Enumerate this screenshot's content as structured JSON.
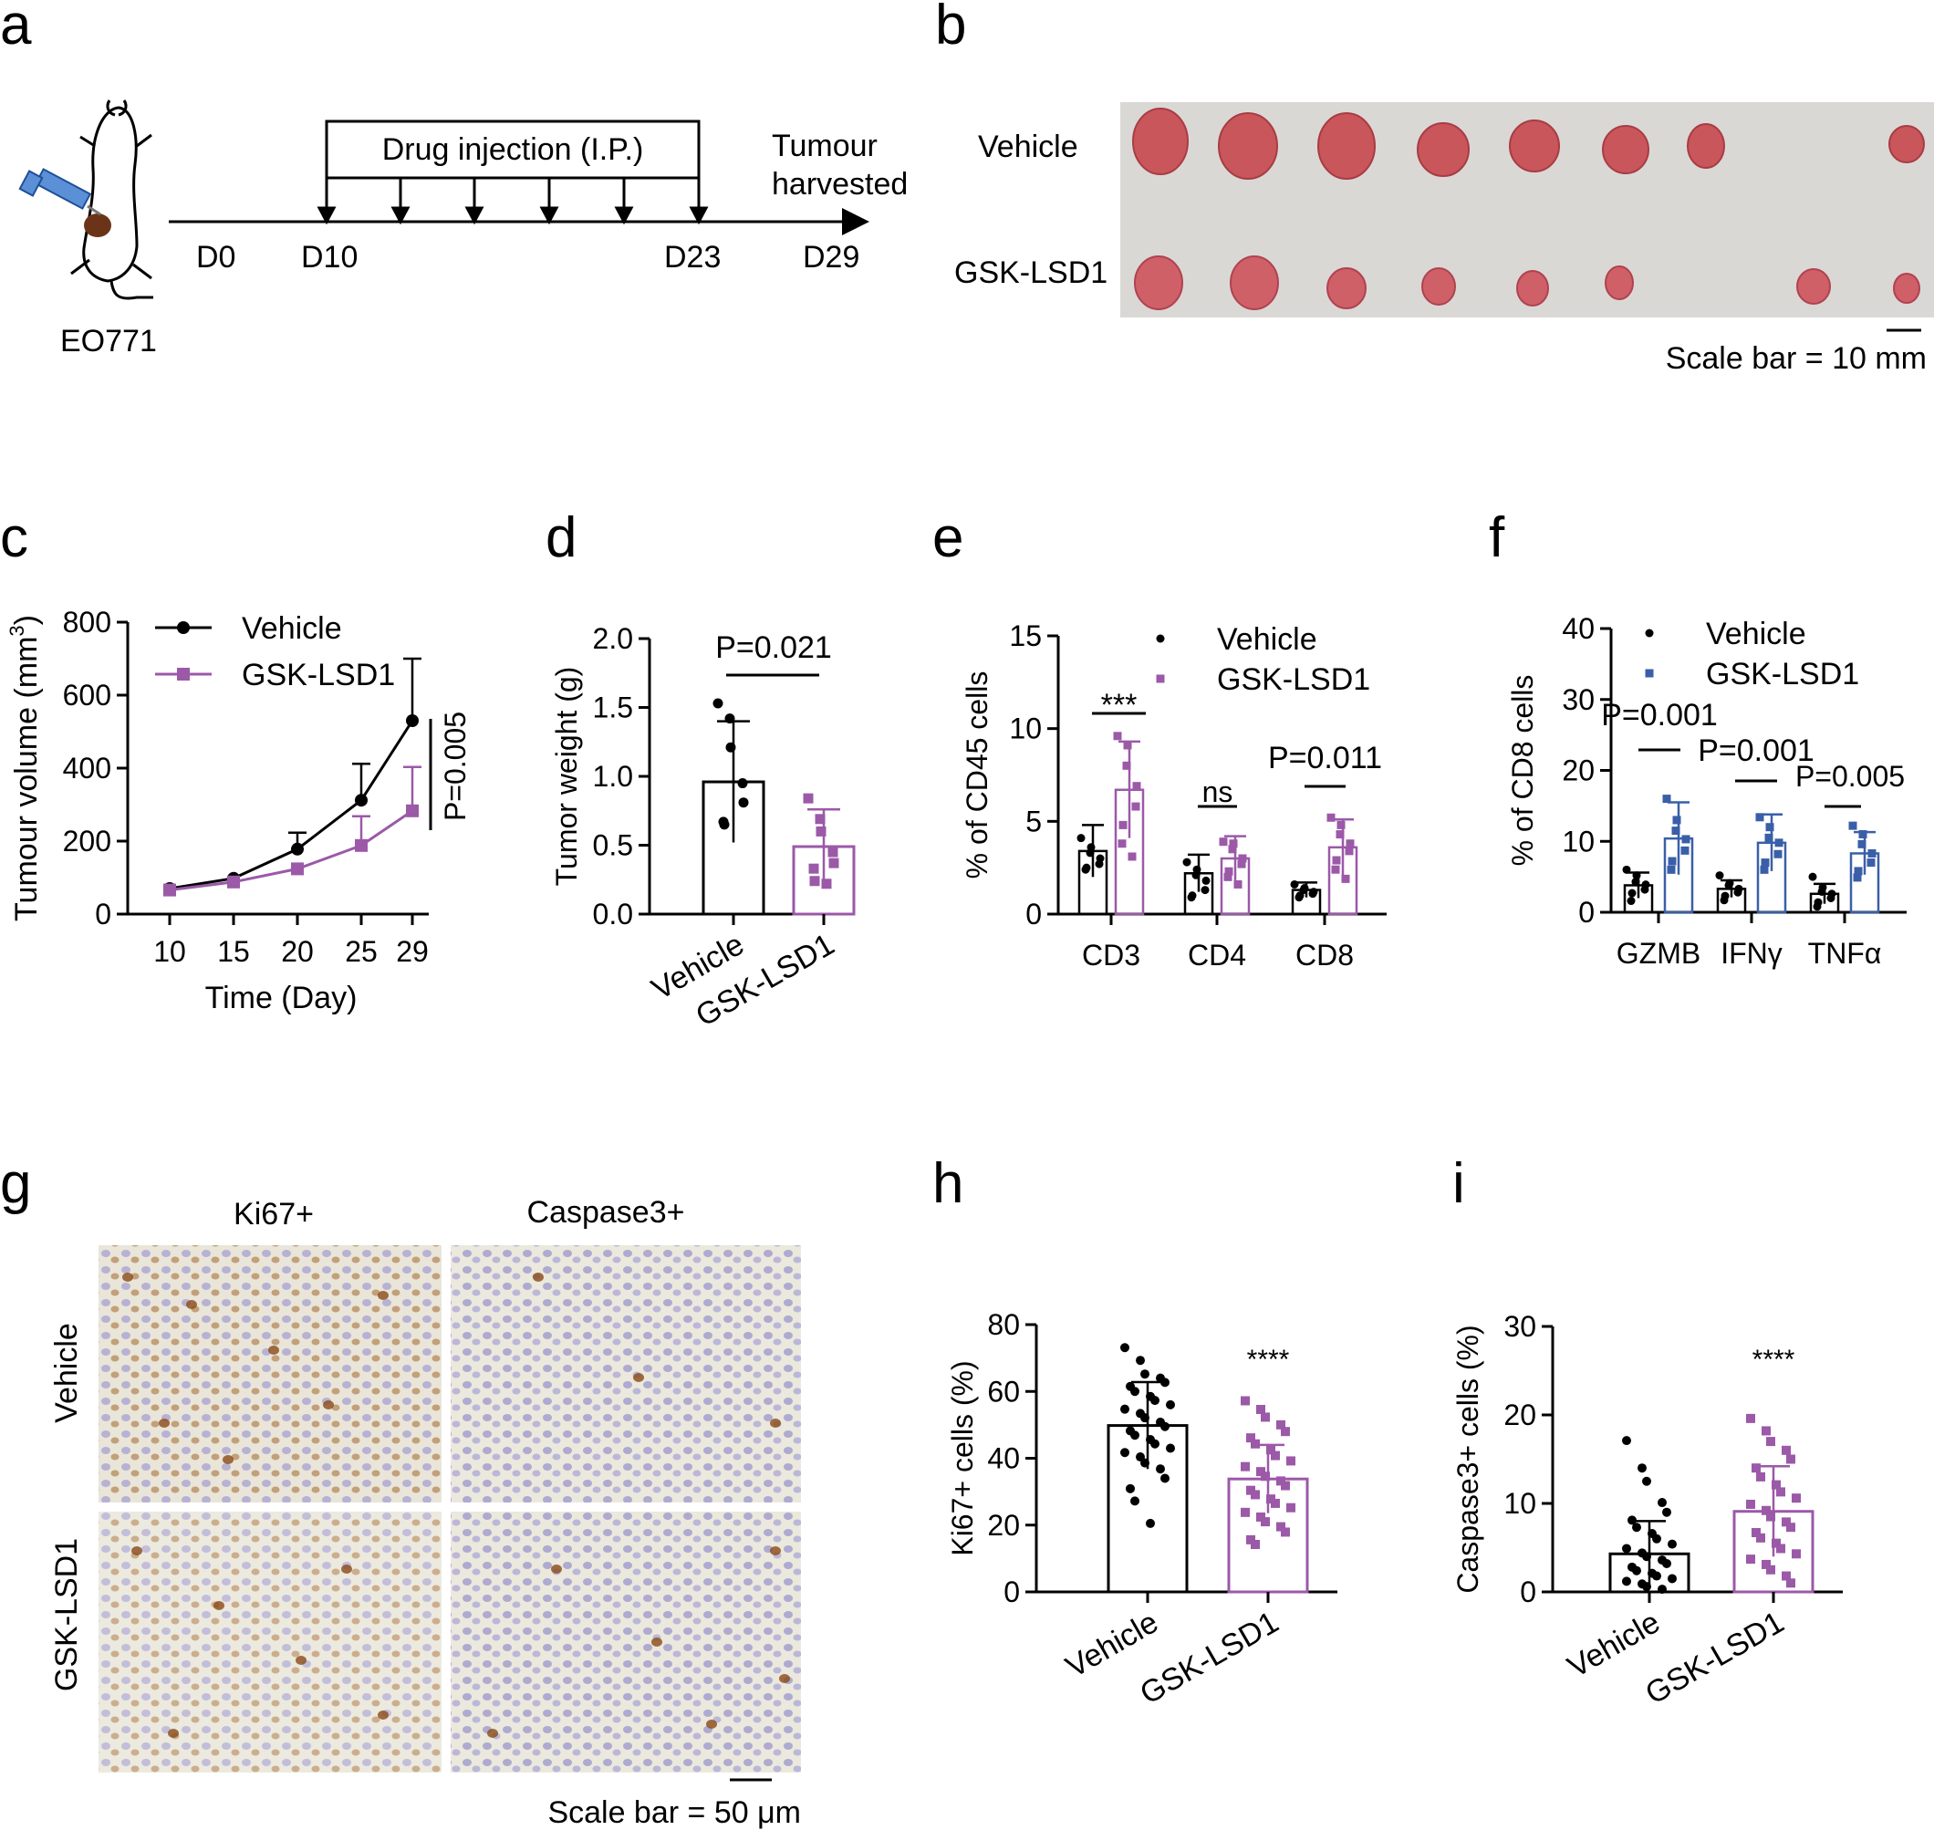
{
  "panel_letters": [
    "a",
    "b",
    "c",
    "d",
    "e",
    "f",
    "g",
    "h",
    "i"
  ],
  "a": {
    "model_label": "EO771",
    "bracket_label": "Drug injection (I.P.)",
    "end_label_1": "Tumour",
    "end_label_2": "harvested",
    "days": [
      "D0",
      "D10",
      "D23",
      "D29"
    ]
  },
  "b": {
    "rows": [
      "Vehicle",
      "GSK-LSD1"
    ],
    "scale_bar": "Scale bar = 10 mm"
  },
  "colors": {
    "vehicle": "#000000",
    "gsk": "#9b59a8",
    "gsk_blue": "#3a5fa8"
  },
  "g": {
    "cols": [
      "Ki67+",
      "Caspase3+"
    ],
    "rows": [
      "Vehicle",
      "GSK-LSD1"
    ],
    "scale_bar": "Scale bar = 50 μm"
  },
  "chart_data": [
    {
      "panel": "c",
      "type": "line",
      "xlabel": "Time  (Day)",
      "ylabel": "Tumour volume (mm",
      "ylabel_sup": "3",
      "ylabel_end": ")",
      "x": [
        10,
        15,
        20,
        25,
        29
      ],
      "ylim": [
        0,
        800
      ],
      "yticks": [
        "0",
        "200",
        "400",
        "600",
        "800"
      ],
      "xticks": [
        "10",
        "15",
        "20",
        "25",
        "29"
      ],
      "series": [
        {
          "name": "Vehicle",
          "values": [
            70,
            98,
            178,
            312,
            530
          ],
          "err": [
            0,
            0,
            45,
            100,
            170
          ]
        },
        {
          "name": "GSK-LSD1",
          "values": [
            66,
            88,
            124,
            188,
            283
          ],
          "err": [
            0,
            0,
            0,
            80,
            120
          ]
        }
      ],
      "annotation": "P=0.005",
      "legend": "top-left"
    },
    {
      "panel": "d",
      "type": "bar",
      "ylabel": "Tumor weight (g)",
      "ylim": [
        0,
        2.0
      ],
      "yticks": [
        "0.0",
        "0.5",
        "1.0",
        "1.5",
        "2.0"
      ],
      "categories": [
        "Vehicle",
        "GSK-LSD1"
      ],
      "values": [
        0.96,
        0.49
      ],
      "sd": [
        0.44,
        0.27
      ],
      "points": [
        [
          1.53,
          1.42,
          1.21,
          0.95,
          0.81,
          0.67,
          0.65
        ],
        [
          0.84,
          0.69,
          0.6,
          0.45,
          0.37,
          0.33,
          0.24,
          0.22
        ]
      ],
      "annotation": "P=0.021"
    },
    {
      "panel": "e",
      "type": "bar",
      "ylabel": "% of CD45  cells",
      "ylim": [
        0,
        15
      ],
      "yticks": [
        "0",
        "5",
        "10",
        "15"
      ],
      "categories": [
        "CD3",
        "CD4",
        "CD8"
      ],
      "series": [
        {
          "name": "Vehicle",
          "values": [
            3.4,
            2.2,
            1.3
          ],
          "sd": [
            1.4,
            1.0,
            0.4
          ]
        },
        {
          "name": "GSK-LSD1",
          "values": [
            6.7,
            3.0,
            3.6
          ],
          "sd": [
            2.6,
            1.2,
            1.5
          ]
        }
      ],
      "points": {
        "Vehicle": [
          [
            4.1,
            3.6,
            3.3,
            3.0,
            2.7,
            2.5,
            2.4
          ],
          [
            2.8,
            2.4,
            2.1,
            1.8,
            1.3,
            1.0,
            0.9
          ],
          [
            1.6,
            1.4,
            1.3,
            1.2,
            1.1,
            1.0,
            0.9
          ]
        ],
        "GSK-LSD1": [
          [
            9.6,
            9.1,
            8.0,
            6.9,
            5.8,
            4.8,
            3.8,
            3.1
          ],
          [
            3.9,
            3.8,
            3.5,
            3.0,
            2.7,
            2.3,
            2.0,
            1.6
          ],
          [
            5.2,
            4.8,
            4.3,
            3.8,
            3.4,
            2.9,
            2.4,
            1.9
          ]
        ]
      },
      "annotations": [
        "***",
        "ns",
        "P=0.011"
      ]
    },
    {
      "panel": "f",
      "type": "bar",
      "ylabel": "% of CD8 cells",
      "ylim": [
        0,
        40
      ],
      "yticks": [
        "0",
        "10",
        "20",
        "30",
        "40"
      ],
      "categories": [
        "GZMB",
        "IFNγ",
        "TNFα"
      ],
      "series": [
        {
          "name": "Vehicle",
          "values": [
            3.8,
            3.3,
            2.6
          ],
          "sd": [
            1.8,
            1.2,
            1.4
          ]
        },
        {
          "name": "GSK-LSD1",
          "values": [
            10.4,
            9.8,
            8.3
          ],
          "sd": [
            5.1,
            4.0,
            3.0
          ]
        }
      ],
      "points": {
        "Vehicle": [
          [
            6.0,
            5.2,
            4.3,
            3.9,
            3.2,
            2.7,
            1.6
          ],
          [
            5.2,
            4.1,
            3.8,
            3.3,
            2.8,
            2.3,
            1.7
          ],
          [
            5.0,
            3.5,
            2.9,
            2.6,
            2.0,
            1.4,
            0.8
          ]
        ],
        "GSK-LSD1": [
          [
            16.0,
            13.0,
            11.5,
            10.3,
            8.7,
            7.2,
            6.0
          ],
          [
            13.4,
            12.0,
            10.5,
            9.8,
            8.2,
            7.0,
            6.0
          ],
          [
            12.2,
            11.0,
            9.6,
            8.3,
            7.0,
            5.8,
            4.9
          ]
        ]
      },
      "annotations": [
        "P=0.001",
        "P=0.001",
        "P=0.005"
      ]
    },
    {
      "panel": "h",
      "type": "bar",
      "ylabel": "Ki67+ cells (%)",
      "ylim": [
        0,
        80
      ],
      "yticks": [
        "0",
        "20",
        "40",
        "60",
        "80"
      ],
      "categories": [
        "Vehicle",
        "GSK-LSD1"
      ],
      "values": [
        49.8,
        33.8
      ],
      "sd": [
        13.0,
        10.2
      ],
      "points": [
        [
          73.1,
          69.3,
          65.2,
          64.0,
          62.7,
          61.5,
          60.0,
          58.5,
          57.3,
          56.0,
          54.7,
          53.4,
          52.1,
          50.8,
          49.5,
          48.2,
          46.9,
          45.6,
          44.3,
          43.0,
          41.7,
          40.4,
          38.6,
          36.8,
          34.0,
          30.9,
          27.2,
          20.5
        ],
        [
          57.2,
          54.6,
          52.3,
          50.0,
          48.0,
          46.1,
          44.3,
          42.5,
          40.8,
          39.2,
          37.5,
          36.0,
          34.6,
          33.2,
          31.8,
          30.4,
          29.1,
          27.8,
          26.5,
          25.2,
          23.8,
          22.4,
          21.0,
          19.5,
          17.9,
          15.6,
          14.2
        ]
      ],
      "annotation": "****"
    },
    {
      "panel": "i",
      "type": "bar",
      "ylabel": "Caspase3+ cells (%)",
      "ylim": [
        0,
        30
      ],
      "yticks": [
        "0",
        "10",
        "20",
        "30"
      ],
      "categories": [
        "Vehicle",
        "GSK-LSD1"
      ],
      "values": [
        4.3,
        9.1
      ],
      "sd": [
        3.7,
        5.1
      ],
      "points": [
        [
          17.1,
          14.0,
          12.5,
          10.1,
          9.0,
          8.1,
          7.3,
          6.6,
          6.0,
          5.4,
          4.9,
          4.4,
          4.0,
          3.6,
          3.2,
          2.8,
          2.4,
          2.1,
          1.8,
          1.5,
          1.2,
          0.9,
          0.6,
          0.3
        ],
        [
          19.6,
          18.2,
          17.0,
          16.0,
          15.0,
          14.0,
          13.0,
          12.1,
          11.3,
          10.6,
          9.9,
          9.2,
          8.5,
          7.9,
          7.3,
          6.7,
          6.1,
          5.5,
          4.9,
          4.3,
          3.7,
          3.1,
          2.5,
          1.8,
          1.0
        ]
      ],
      "annotation": "****"
    }
  ]
}
